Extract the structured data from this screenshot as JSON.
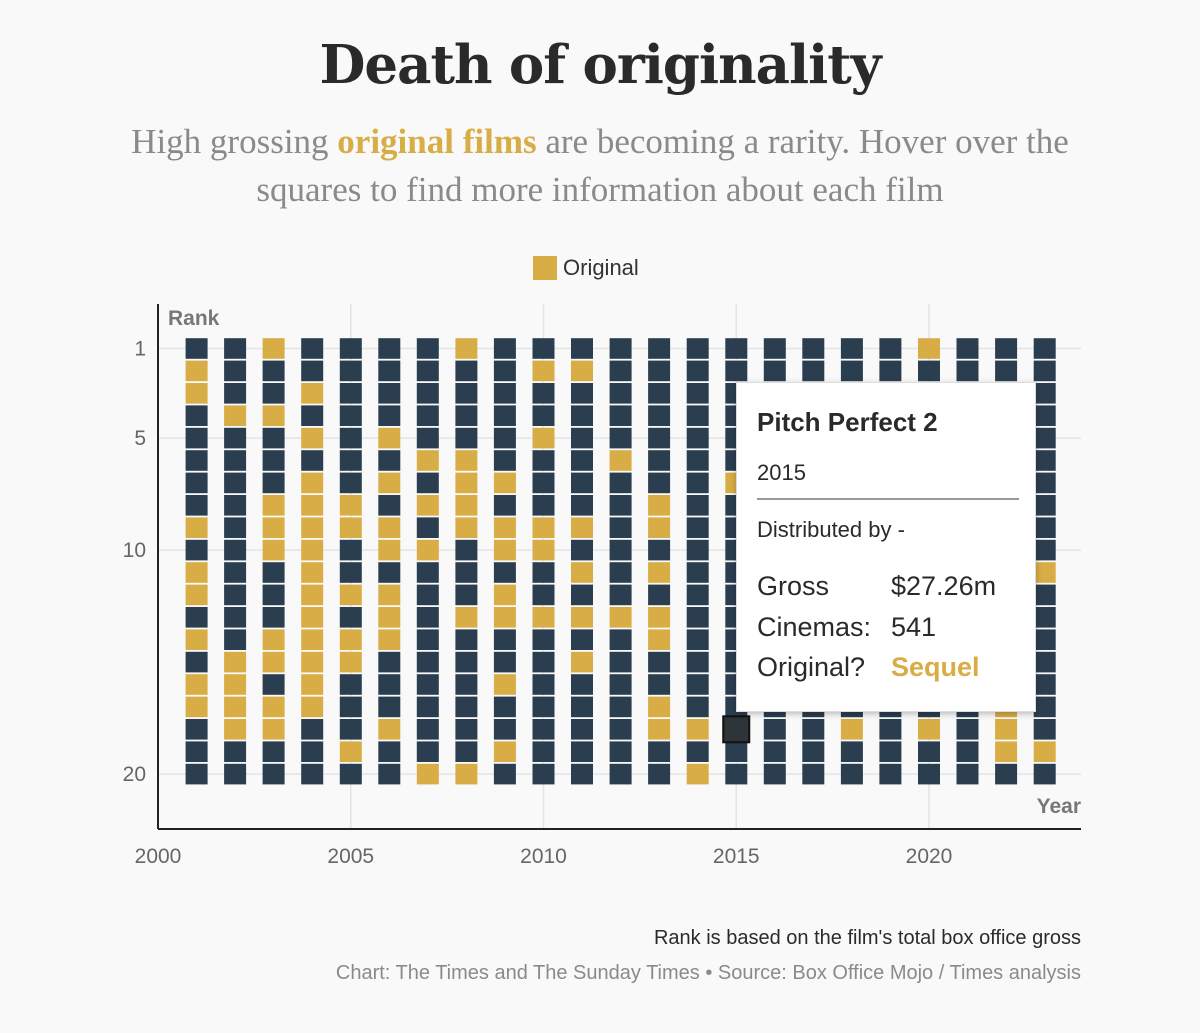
{
  "title": "Death of originality",
  "subtitle": {
    "before": "High grossing ",
    "highlight": "original films",
    "after": " are becoming a rarity. Hover over the squares to find more information about each film"
  },
  "legend": {
    "label": "Original"
  },
  "colors": {
    "original": "#d8ad45",
    "not_original": "#2b3e4f",
    "gridline": "#e4e4e4",
    "axis": "#222222"
  },
  "tooltip": {
    "title": "Pitch Perfect 2",
    "year": "2015",
    "distributed": "Distributed by -",
    "gross_label": "Gross",
    "gross_value": "$27.26m",
    "cinemas_label": "Cinemas:",
    "cinemas_value": "541",
    "original_label": "Original?",
    "original_value": "Sequel"
  },
  "footnote": "Rank is based on the film's total box office gross",
  "credit": "Chart: The Times and The Sunday Times • Source: Box Office Mojo / Times analysis",
  "chart_data": {
    "type": "heatmap",
    "x_title": "Year",
    "y_title": "Rank",
    "x_ticks": [
      2000,
      2005,
      2010,
      2015,
      2020
    ],
    "y_ticks": [
      1,
      5,
      10,
      20
    ],
    "xlim": [
      2000,
      2024
    ],
    "ylim": [
      0.5,
      21.5
    ],
    "years": [
      2001,
      2002,
      2003,
      2004,
      2005,
      2006,
      2007,
      2008,
      2009,
      2010,
      2011,
      2012,
      2013,
      2014,
      2015,
      2016,
      2017,
      2018,
      2019,
      2020,
      2021,
      2022,
      2023
    ],
    "original_ranks": {
      "2001": [
        2,
        3,
        9,
        11,
        12,
        14,
        16,
        17
      ],
      "2002": [
        4,
        15,
        16,
        17,
        18
      ],
      "2003": [
        1,
        4,
        8,
        9,
        10,
        14,
        15,
        17,
        18
      ],
      "2004": [
        3,
        5,
        7,
        8,
        9,
        10,
        11,
        12,
        13,
        14,
        15,
        16,
        17
      ],
      "2005": [
        8,
        9,
        12,
        14,
        15,
        19
      ],
      "2006": [
        5,
        7,
        9,
        10,
        12,
        13,
        14,
        18
      ],
      "2007": [
        6,
        8,
        10,
        20
      ],
      "2008": [
        1,
        6,
        7,
        8,
        9,
        13,
        20
      ],
      "2009": [
        7,
        9,
        10,
        12,
        13,
        16,
        19
      ],
      "2010": [
        2,
        5,
        9,
        10,
        13
      ],
      "2011": [
        2,
        9,
        11,
        13,
        15
      ],
      "2012": [
        6,
        13
      ],
      "2013": [
        8,
        9,
        11,
        13,
        14,
        17,
        18
      ],
      "2014": [
        18,
        20
      ],
      "2015": [
        7
      ],
      "2016": [],
      "2017": [],
      "2018": [
        18
      ],
      "2019": [],
      "2020": [
        1,
        18
      ],
      "2021": [],
      "2022": [
        16,
        17,
        18,
        19
      ],
      "2023": [
        11,
        19
      ]
    },
    "highlighted": {
      "year": 2015,
      "rank": 18
    }
  }
}
